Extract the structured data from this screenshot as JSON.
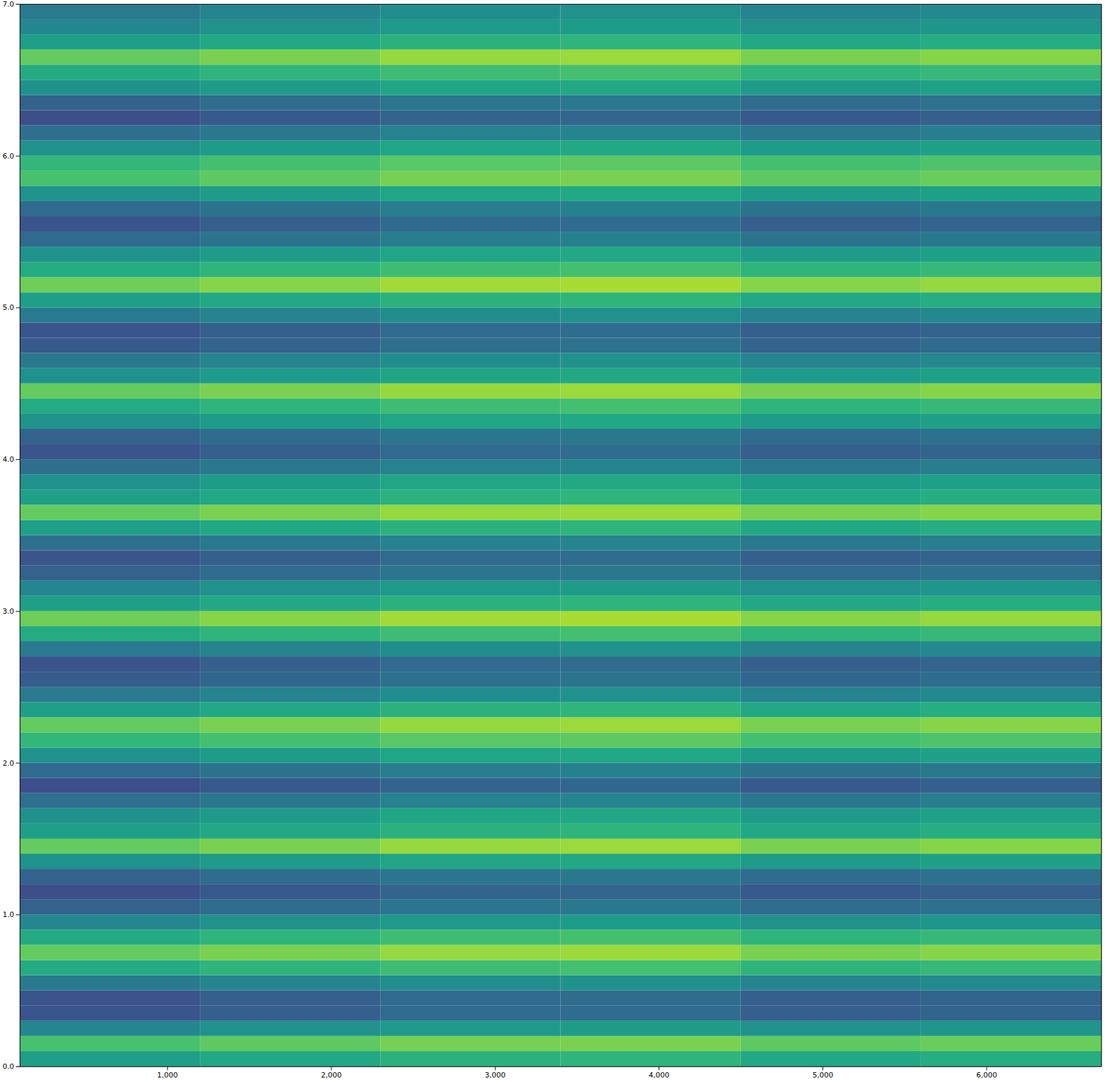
{
  "chart_data": {
    "type": "heatmap",
    "xlim": [
      100,
      6700
    ],
    "ylim": [
      0,
      7
    ],
    "xticks": [
      1000,
      2000,
      3000,
      4000,
      5000,
      6000
    ],
    "yticks": [
      0,
      1,
      2,
      3,
      4,
      5,
      6,
      7
    ],
    "grid": false,
    "color": "viridis",
    "zlim": [
      0,
      1
    ],
    "x_bins": [
      100,
      1200,
      2300,
      3400,
      4500,
      5600,
      6700
    ],
    "y_bins": [
      0,
      0.1,
      0.2,
      0.3,
      0.4,
      0.5,
      0.6,
      0.7,
      0.8,
      0.9,
      1.0,
      1.1,
      1.2,
      1.3,
      1.4,
      1.5,
      1.6,
      1.7,
      1.8,
      1.9,
      2.0,
      2.1,
      2.2,
      2.3,
      2.4,
      2.5,
      2.6,
      2.7,
      2.8,
      2.9,
      3.0,
      3.1,
      3.2,
      3.3,
      3.4,
      3.5,
      3.6,
      3.7,
      3.8,
      3.9,
      4.0,
      4.1,
      4.2,
      4.3,
      4.4,
      4.5,
      4.6,
      4.7,
      4.8,
      4.9,
      5.0,
      5.1,
      5.2,
      5.3,
      5.4,
      5.5,
      5.6,
      5.7,
      5.8,
      5.9,
      6.0,
      6.1,
      6.2,
      6.3,
      6.4,
      6.5,
      6.6,
      6.7,
      6.8,
      6.9,
      7.0
    ],
    "z": [
      [
        0.56,
        0.6,
        0.64,
        0.65,
        0.6,
        0.62
      ],
      [
        0.71,
        0.75,
        0.79,
        0.8,
        0.75,
        0.77
      ],
      [
        0.46,
        0.5,
        0.54,
        0.55,
        0.5,
        0.52
      ],
      [
        0.26,
        0.3,
        0.34,
        0.35,
        0.3,
        0.32
      ],
      [
        0.26,
        0.3,
        0.34,
        0.35,
        0.3,
        0.32
      ],
      [
        0.41,
        0.45,
        0.49,
        0.5,
        0.45,
        0.47
      ],
      [
        0.61,
        0.65,
        0.69,
        0.7,
        0.65,
        0.67
      ],
      [
        0.76,
        0.8,
        0.84,
        0.85,
        0.8,
        0.82
      ],
      [
        0.61,
        0.65,
        0.69,
        0.7,
        0.65,
        0.67
      ],
      [
        0.46,
        0.5,
        0.54,
        0.55,
        0.5,
        0.52
      ],
      [
        0.31,
        0.35,
        0.39,
        0.4,
        0.35,
        0.37
      ],
      [
        0.24,
        0.28,
        0.32,
        0.33,
        0.28,
        0.3
      ],
      [
        0.31,
        0.35,
        0.39,
        0.4,
        0.35,
        0.37
      ],
      [
        0.51,
        0.55,
        0.59,
        0.6,
        0.55,
        0.57
      ],
      [
        0.76,
        0.8,
        0.84,
        0.85,
        0.8,
        0.82
      ],
      [
        0.56,
        0.6,
        0.64,
        0.65,
        0.6,
        0.62
      ],
      [
        0.51,
        0.55,
        0.59,
        0.6,
        0.55,
        0.57
      ],
      [
        0.36,
        0.4,
        0.44,
        0.45,
        0.4,
        0.42
      ],
      [
        0.24,
        0.28,
        0.32,
        0.33,
        0.28,
        0.3
      ],
      [
        0.34,
        0.38,
        0.42,
        0.43,
        0.38,
        0.4
      ],
      [
        0.51,
        0.55,
        0.59,
        0.6,
        0.55,
        0.57
      ],
      [
        0.66,
        0.7,
        0.74,
        0.75,
        0.7,
        0.72
      ],
      [
        0.76,
        0.8,
        0.84,
        0.85,
        0.8,
        0.82
      ],
      [
        0.56,
        0.6,
        0.64,
        0.65,
        0.6,
        0.62
      ],
      [
        0.41,
        0.45,
        0.49,
        0.5,
        0.45,
        0.47
      ],
      [
        0.29,
        0.33,
        0.37,
        0.38,
        0.33,
        0.35
      ],
      [
        0.26,
        0.3,
        0.34,
        0.35,
        0.3,
        0.32
      ],
      [
        0.41,
        0.45,
        0.49,
        0.5,
        0.45,
        0.47
      ],
      [
        0.61,
        0.65,
        0.69,
        0.7,
        0.65,
        0.67
      ],
      [
        0.78,
        0.82,
        0.86,
        0.87,
        0.82,
        0.84
      ],
      [
        0.56,
        0.6,
        0.64,
        0.65,
        0.6,
        0.62
      ],
      [
        0.46,
        0.5,
        0.54,
        0.55,
        0.5,
        0.52
      ],
      [
        0.31,
        0.35,
        0.39,
        0.4,
        0.35,
        0.37
      ],
      [
        0.26,
        0.3,
        0.34,
        0.35,
        0.3,
        0.32
      ],
      [
        0.36,
        0.4,
        0.44,
        0.45,
        0.4,
        0.42
      ],
      [
        0.56,
        0.6,
        0.64,
        0.65,
        0.6,
        0.62
      ],
      [
        0.76,
        0.8,
        0.84,
        0.85,
        0.8,
        0.82
      ],
      [
        0.56,
        0.6,
        0.64,
        0.65,
        0.6,
        0.62
      ],
      [
        0.51,
        0.55,
        0.59,
        0.6,
        0.55,
        0.57
      ],
      [
        0.36,
        0.4,
        0.44,
        0.45,
        0.4,
        0.42
      ],
      [
        0.26,
        0.3,
        0.34,
        0.35,
        0.3,
        0.32
      ],
      [
        0.31,
        0.35,
        0.39,
        0.4,
        0.35,
        0.37
      ],
      [
        0.51,
        0.55,
        0.59,
        0.6,
        0.55,
        0.57
      ],
      [
        0.61,
        0.65,
        0.69,
        0.7,
        0.65,
        0.67
      ],
      [
        0.76,
        0.8,
        0.84,
        0.85,
        0.8,
        0.82
      ],
      [
        0.51,
        0.55,
        0.59,
        0.6,
        0.55,
        0.57
      ],
      [
        0.41,
        0.45,
        0.49,
        0.5,
        0.45,
        0.47
      ],
      [
        0.28,
        0.32,
        0.36,
        0.37,
        0.32,
        0.34
      ],
      [
        0.26,
        0.3,
        0.34,
        0.35,
        0.3,
        0.32
      ],
      [
        0.41,
        0.45,
        0.49,
        0.5,
        0.45,
        0.47
      ],
      [
        0.56,
        0.6,
        0.64,
        0.65,
        0.6,
        0.62
      ],
      [
        0.78,
        0.82,
        0.86,
        0.87,
        0.82,
        0.84
      ],
      [
        0.61,
        0.65,
        0.69,
        0.7,
        0.65,
        0.67
      ],
      [
        0.51,
        0.55,
        0.59,
        0.6,
        0.55,
        0.57
      ],
      [
        0.34,
        0.38,
        0.42,
        0.43,
        0.38,
        0.4
      ],
      [
        0.26,
        0.3,
        0.34,
        0.35,
        0.3,
        0.32
      ],
      [
        0.34,
        0.38,
        0.42,
        0.43,
        0.38,
        0.4
      ],
      [
        0.51,
        0.55,
        0.59,
        0.6,
        0.55,
        0.57
      ],
      [
        0.71,
        0.75,
        0.79,
        0.8,
        0.75,
        0.77
      ],
      [
        0.66,
        0.7,
        0.74,
        0.75,
        0.7,
        0.72
      ],
      [
        0.51,
        0.55,
        0.59,
        0.6,
        0.55,
        0.57
      ],
      [
        0.36,
        0.4,
        0.44,
        0.45,
        0.4,
        0.42
      ],
      [
        0.24,
        0.28,
        0.32,
        0.33,
        0.28,
        0.3
      ],
      [
        0.31,
        0.35,
        0.39,
        0.4,
        0.35,
        0.37
      ],
      [
        0.51,
        0.55,
        0.59,
        0.6,
        0.55,
        0.57
      ],
      [
        0.61,
        0.65,
        0.69,
        0.7,
        0.65,
        0.67
      ],
      [
        0.76,
        0.8,
        0.84,
        0.85,
        0.8,
        0.82
      ],
      [
        0.56,
        0.6,
        0.64,
        0.65,
        0.6,
        0.62
      ],
      [
        0.46,
        0.5,
        0.54,
        0.55,
        0.5,
        0.52
      ],
      [
        0.41,
        0.45,
        0.49,
        0.5,
        0.45,
        0.47
      ]
    ]
  }
}
